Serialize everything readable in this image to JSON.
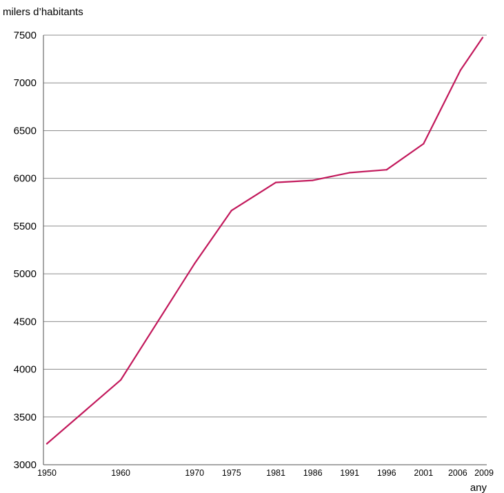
{
  "chart_data": {
    "type": "line",
    "ylabel": "milers d’habitants",
    "xlabel": "any",
    "x": [
      1950,
      1960,
      1970,
      1975,
      1981,
      1986,
      1991,
      1996,
      2001,
      2006,
      2009
    ],
    "series": [
      {
        "values": [
          3220,
          3888,
          5107,
          5663,
          5957,
          5979,
          6060,
          6090,
          6362,
          7134,
          7475
        ]
      }
    ],
    "ylim": [
      3000,
      7500
    ],
    "yticks": [
      3000,
      3500,
      4000,
      4500,
      5000,
      5500,
      6000,
      6500,
      7000,
      7500
    ],
    "xticks": [
      1950,
      1960,
      1970,
      1975,
      1981,
      1986,
      1991,
      1996,
      2001,
      2006,
      2009
    ],
    "grid": "horizontal",
    "line_color": "#c2185b",
    "grid_color": "#8c8c8c",
    "axis_color": "#4d4d4d"
  }
}
